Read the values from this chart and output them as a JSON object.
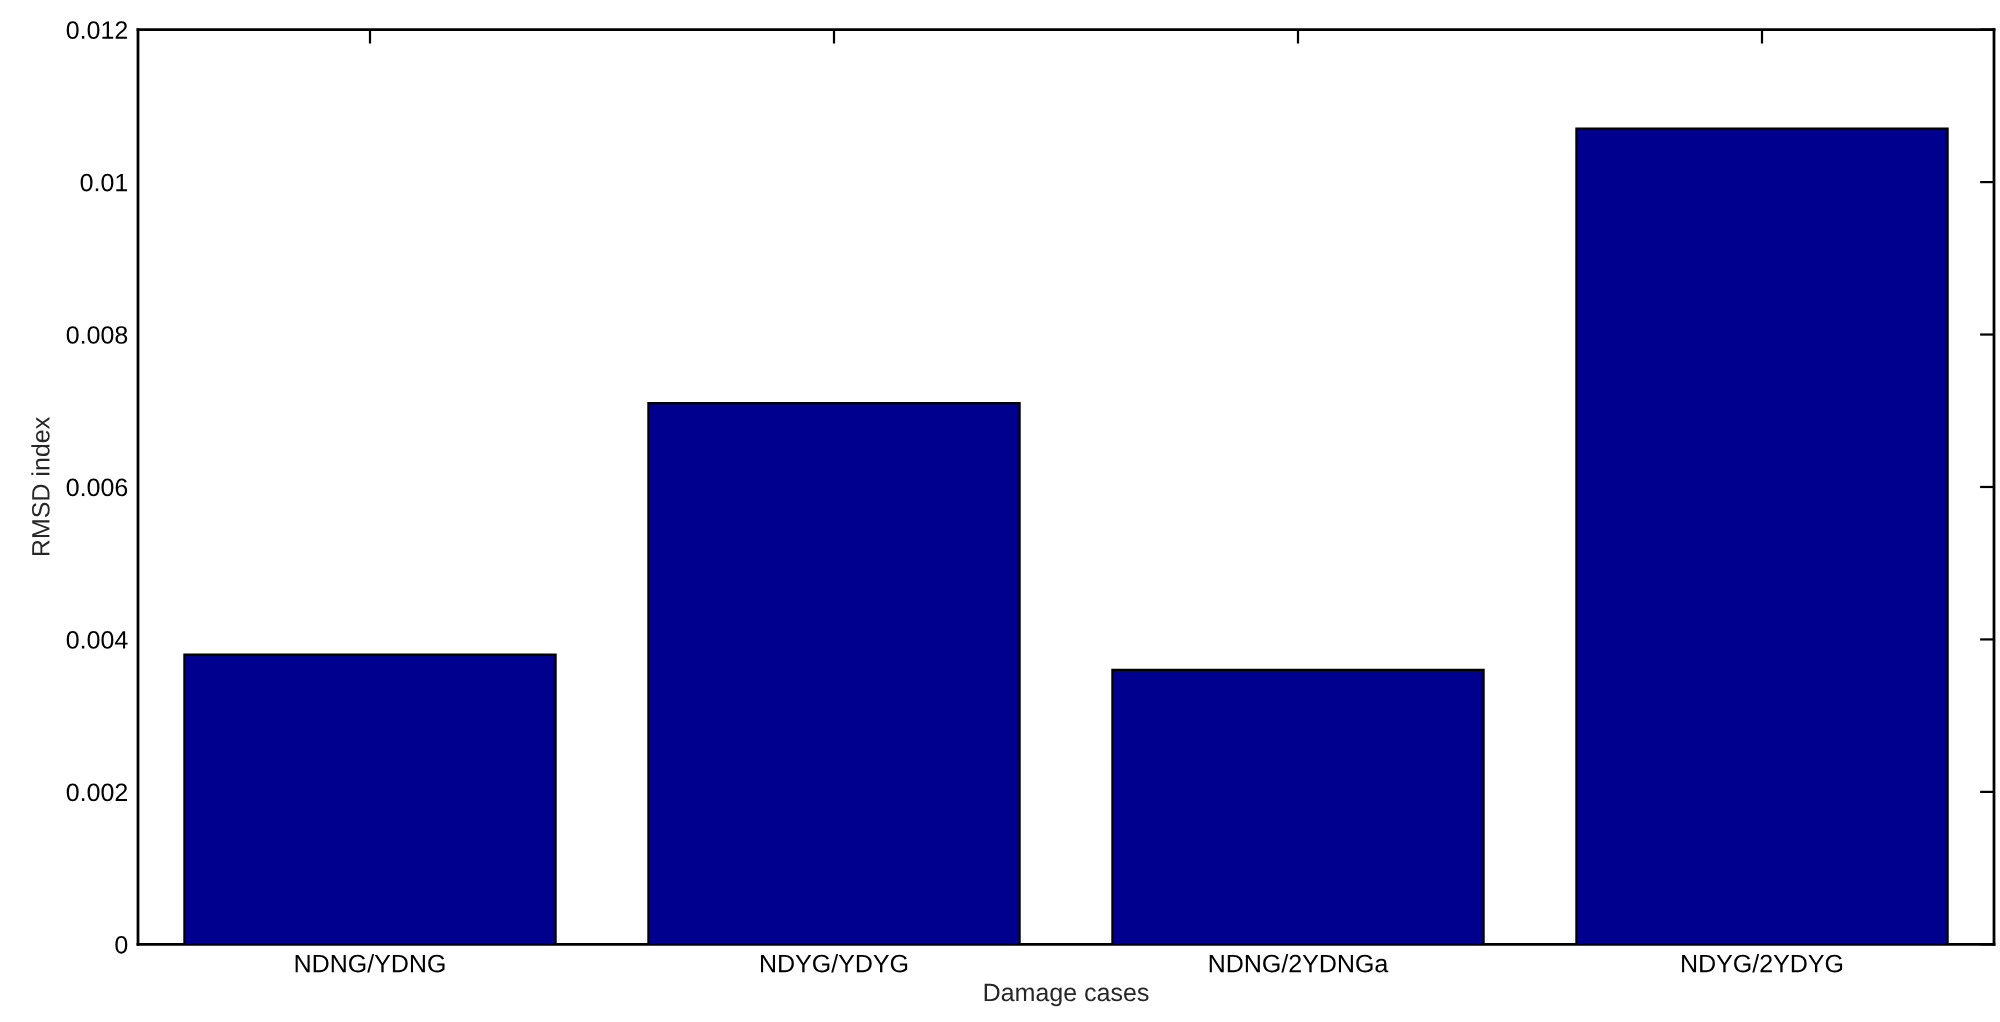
{
  "chart_data": {
    "type": "bar",
    "xlabel": "Damage cases",
    "ylabel": "RMSD index",
    "categories": [
      "NDNG/YDNG",
      "NDYG/YDYG",
      "NDNG/2YDNGa",
      "NDYG/2YDYG"
    ],
    "values": [
      0.0038,
      0.0071,
      0.0036,
      0.0107
    ],
    "color": "#00008f",
    "ylim": [
      0,
      0.012
    ],
    "yticks": [
      0,
      0.002,
      0.004,
      0.006,
      0.008,
      0.01,
      0.012
    ],
    "grid": false
  }
}
